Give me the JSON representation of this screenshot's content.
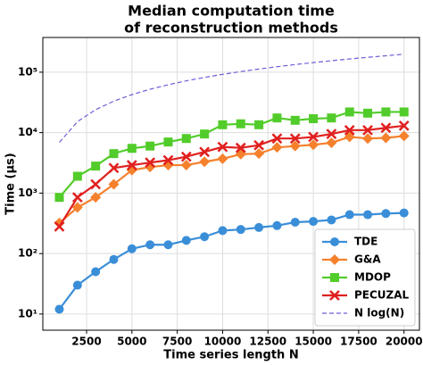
{
  "chart_data": {
    "type": "line",
    "title": [
      "Median computation time",
      "of reconstruction methods"
    ],
    "xlabel": "Time series length N",
    "ylabel": "Time (μs)",
    "x": [
      1000,
      2000,
      3000,
      4000,
      5000,
      6000,
      7000,
      8000,
      9000,
      10000,
      11000,
      12000,
      13000,
      14000,
      15000,
      16000,
      17000,
      18000,
      19000,
      20000
    ],
    "series": [
      {
        "name": "TDE",
        "color": "#3a8ed8",
        "marker": "circle",
        "linestyle": "solid",
        "values": [
          12,
          30,
          50,
          80,
          120,
          140,
          140,
          165,
          190,
          240,
          250,
          270,
          290,
          330,
          340,
          360,
          440,
          440,
          460,
          470
        ]
      },
      {
        "name": "G&A",
        "color": "#f5812d",
        "marker": "diamond",
        "linestyle": "solid",
        "values": [
          320,
          580,
          850,
          1400,
          2400,
          2700,
          2900,
          2900,
          3300,
          3700,
          4400,
          4500,
          5700,
          6000,
          6300,
          6800,
          8500,
          8000,
          8200,
          8800
        ]
      },
      {
        "name": "MDOP",
        "color": "#52cc2a",
        "marker": "square",
        "linestyle": "solid",
        "values": [
          850,
          1900,
          2800,
          4500,
          5500,
          6000,
          7000,
          8000,
          9500,
          13500,
          14000,
          13500,
          17500,
          16000,
          17000,
          17500,
          22000,
          21000,
          22000,
          22000
        ]
      },
      {
        "name": "PECUZAL",
        "color": "#e0201f",
        "marker": "x",
        "linestyle": "solid",
        "values": [
          280,
          850,
          1400,
          2600,
          2900,
          3200,
          3500,
          4000,
          4800,
          5800,
          5600,
          6200,
          8000,
          8000,
          8500,
          9500,
          11000,
          11000,
          12000,
          13000
        ]
      },
      {
        "name": "N log(N)",
        "color": "#6b5fd6",
        "marker": "none",
        "linestyle": "dashed",
        "values": [
          6908,
          15202,
          24019,
          33176,
          42586,
          52197,
          61975,
          71897,
          81946,
          92103,
          102366,
          112713,
          123164,
          133698,
          144226,
          154848,
          165500,
          176230,
          187034,
          198070
        ]
      }
    ],
    "xlim": [
      90,
      20850
    ],
    "xticks": [
      2500,
      5000,
      7500,
      10000,
      12500,
      15000,
      17500,
      20000
    ],
    "ylim": [
      5.4,
      375000
    ],
    "log_y": true,
    "yticks": [
      {
        "value": 10,
        "label": "10¹"
      },
      {
        "value": 100,
        "label": "10²"
      },
      {
        "value": 1000,
        "label": "10³"
      },
      {
        "value": 10000,
        "label": "10⁴"
      },
      {
        "value": 100000,
        "label": "10⁵"
      }
    ],
    "grid": true,
    "legend": "lower right"
  }
}
